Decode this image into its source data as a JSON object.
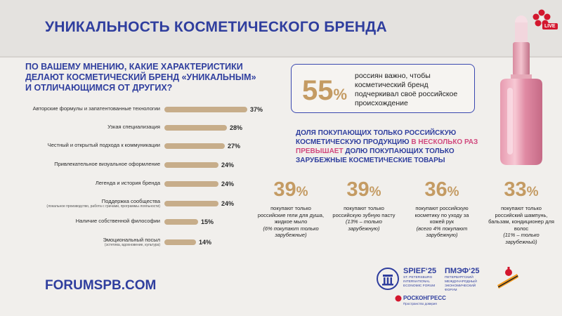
{
  "slide": {
    "title": "УНИКАЛЬНОСТЬ КОСМЕТИЧЕСКОГО БРЕНДА",
    "live_badge": "LIVE",
    "question": "ПО ВАШЕМУ МНЕНИЮ, КАКИЕ ХАРАКТЕРИСТИКИ ДЕЛАЮТ КОСМЕТИЧЕСКИЙ БРЕНД «УНИКАЛЬНЫМ» И ОТЛИЧАЮЩИМСЯ ОТ ДРУГИХ?",
    "highlight": {
      "value": "55",
      "pct": "%",
      "text": "россиян важно, чтобы косметический бренд подчеркивал своё российское происхождение"
    },
    "share_text": {
      "part1": "ДОЛЯ ПОКУПАЮЩИХ ТОЛЬКО РОССИЙСКУЮ КОСМЕТИЧЕСКУЮ ПРОДУКЦИЮ ",
      "highlight": "В НЕСКОЛЬКО РАЗ ПРЕВЫШАЕТ",
      "part2": " ДОЛЮ ПОКУПАЮЩИХ ТОЛЬКО ЗАРУБЕЖНЫЕ КОСМЕТИЧЕСКИЕ ТОВАРЫ"
    },
    "stats": [
      {
        "value": "39",
        "pct": "%",
        "text": "покупают только российские гели для душа, жидкое мыло",
        "note": "(6% покупают только зарубежные)"
      },
      {
        "value": "39",
        "pct": "%",
        "text": "покупают только российскую зубную пасту",
        "note": "(13% – только зарубежную)"
      },
      {
        "value": "36",
        "pct": "%",
        "text": "покупают российскую косметику по уходу за кожей рук",
        "note": "(всего 4% покупают зарубежную)"
      },
      {
        "value": "33",
        "pct": "%",
        "text": "покупают только российский шампунь, бальзам, кондиционер для волос",
        "note": "(11% – только зарубежный)"
      }
    ],
    "footer": {
      "url": "FORUMSPB.COM",
      "spief": "SPIEF‘25",
      "spief_sub": "ST. PETERSBURG INTERNATIONAL ECONOMIC FORUM",
      "pmef": "ПМЭФ‘25",
      "pmef_sub": "ПЕТЕРБУРГСКИЙ МЕЖДУНАРОДНЫЙ ЭКОНОМИЧЕСКИЙ ФОРУМ",
      "roscongress": "РОСКОНГРЕСС",
      "roscongress_sub": "Пространство доверия"
    }
  },
  "colors": {
    "title_blue": "#2f3e9e",
    "bar_gold": "#c7ad8a",
    "accent_gold": "#c49b63",
    "highlight_pink": "#d14a7e"
  },
  "chart_data": {
    "type": "bar",
    "orientation": "horizontal",
    "categories": [
      {
        "label": "Авторские формулы и запатентованные технологии",
        "sub": ""
      },
      {
        "label": "Узкая специализация",
        "sub": ""
      },
      {
        "label": "Честный и открытый подхода к коммуникации",
        "sub": ""
      },
      {
        "label": "Привлекательное визуальное оформление",
        "sub": ""
      },
      {
        "label": "Легенда и история бренда",
        "sub": ""
      },
      {
        "label": "Поддержка сообщества",
        "sub": "(локальное производство, работа с грачами, программы лояльности)"
      },
      {
        "label": "Наличие собственной философии",
        "sub": ""
      },
      {
        "label": "Эмоциональный посыл",
        "sub": "(эстетика, вдохновение, культура)"
      }
    ],
    "values": [
      37,
      28,
      27,
      24,
      24,
      24,
      15,
      14
    ],
    "value_labels": [
      "37%",
      "28%",
      "27%",
      "24%",
      "24%",
      "24%",
      "15%",
      "14%"
    ],
    "unit": "%",
    "xlim": [
      0,
      37
    ]
  }
}
